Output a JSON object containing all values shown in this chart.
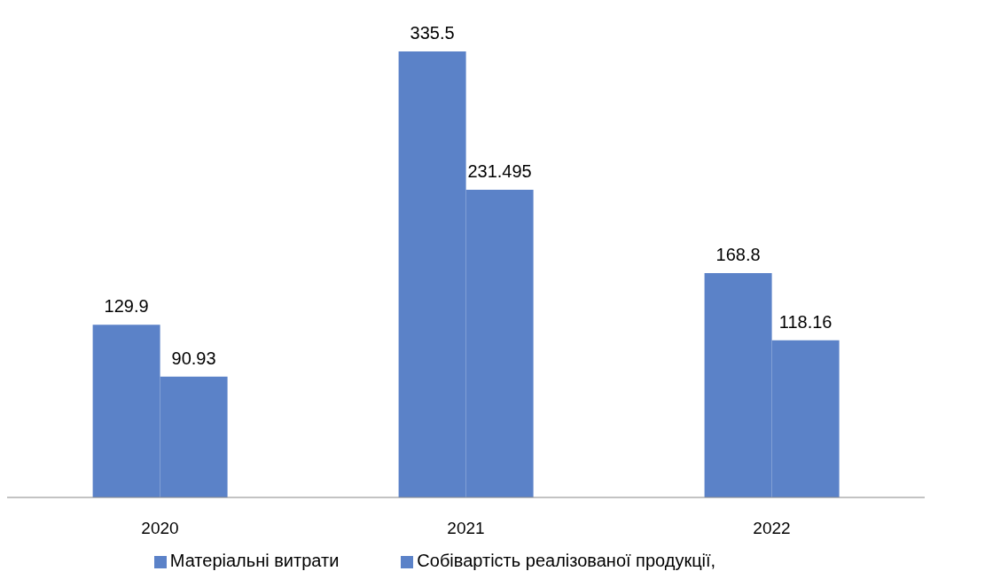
{
  "chart_data": {
    "type": "bar",
    "categories": [
      "2020",
      "2021",
      "2022"
    ],
    "series": [
      {
        "name": "Собівартість реалізованої продукції,",
        "color": "#5b82c8",
        "values": [
          129.9,
          335.5,
          168.8
        ]
      },
      {
        "name": "Матеріальні витрати",
        "color": "#5b82c8",
        "values": [
          90.93,
          231.495,
          118.16
        ]
      }
    ],
    "data_labels": true,
    "legend": "bottom",
    "grid": false
  }
}
